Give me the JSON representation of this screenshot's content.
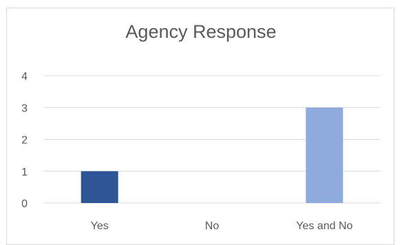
{
  "chart_data": {
    "type": "bar",
    "title": "Agency Response",
    "categories": [
      "Yes",
      "No",
      "Yes and No"
    ],
    "values": [
      1,
      0,
      3
    ],
    "bar_colors": [
      "#2f5597",
      "#2f5597",
      "#8faadc"
    ],
    "ylim": [
      0,
      4
    ],
    "yticks": [
      "0",
      "1",
      "2",
      "3",
      "4"
    ],
    "xlabel": "",
    "ylabel": "",
    "grid": true,
    "gridline_color": "#d9d9d9"
  }
}
